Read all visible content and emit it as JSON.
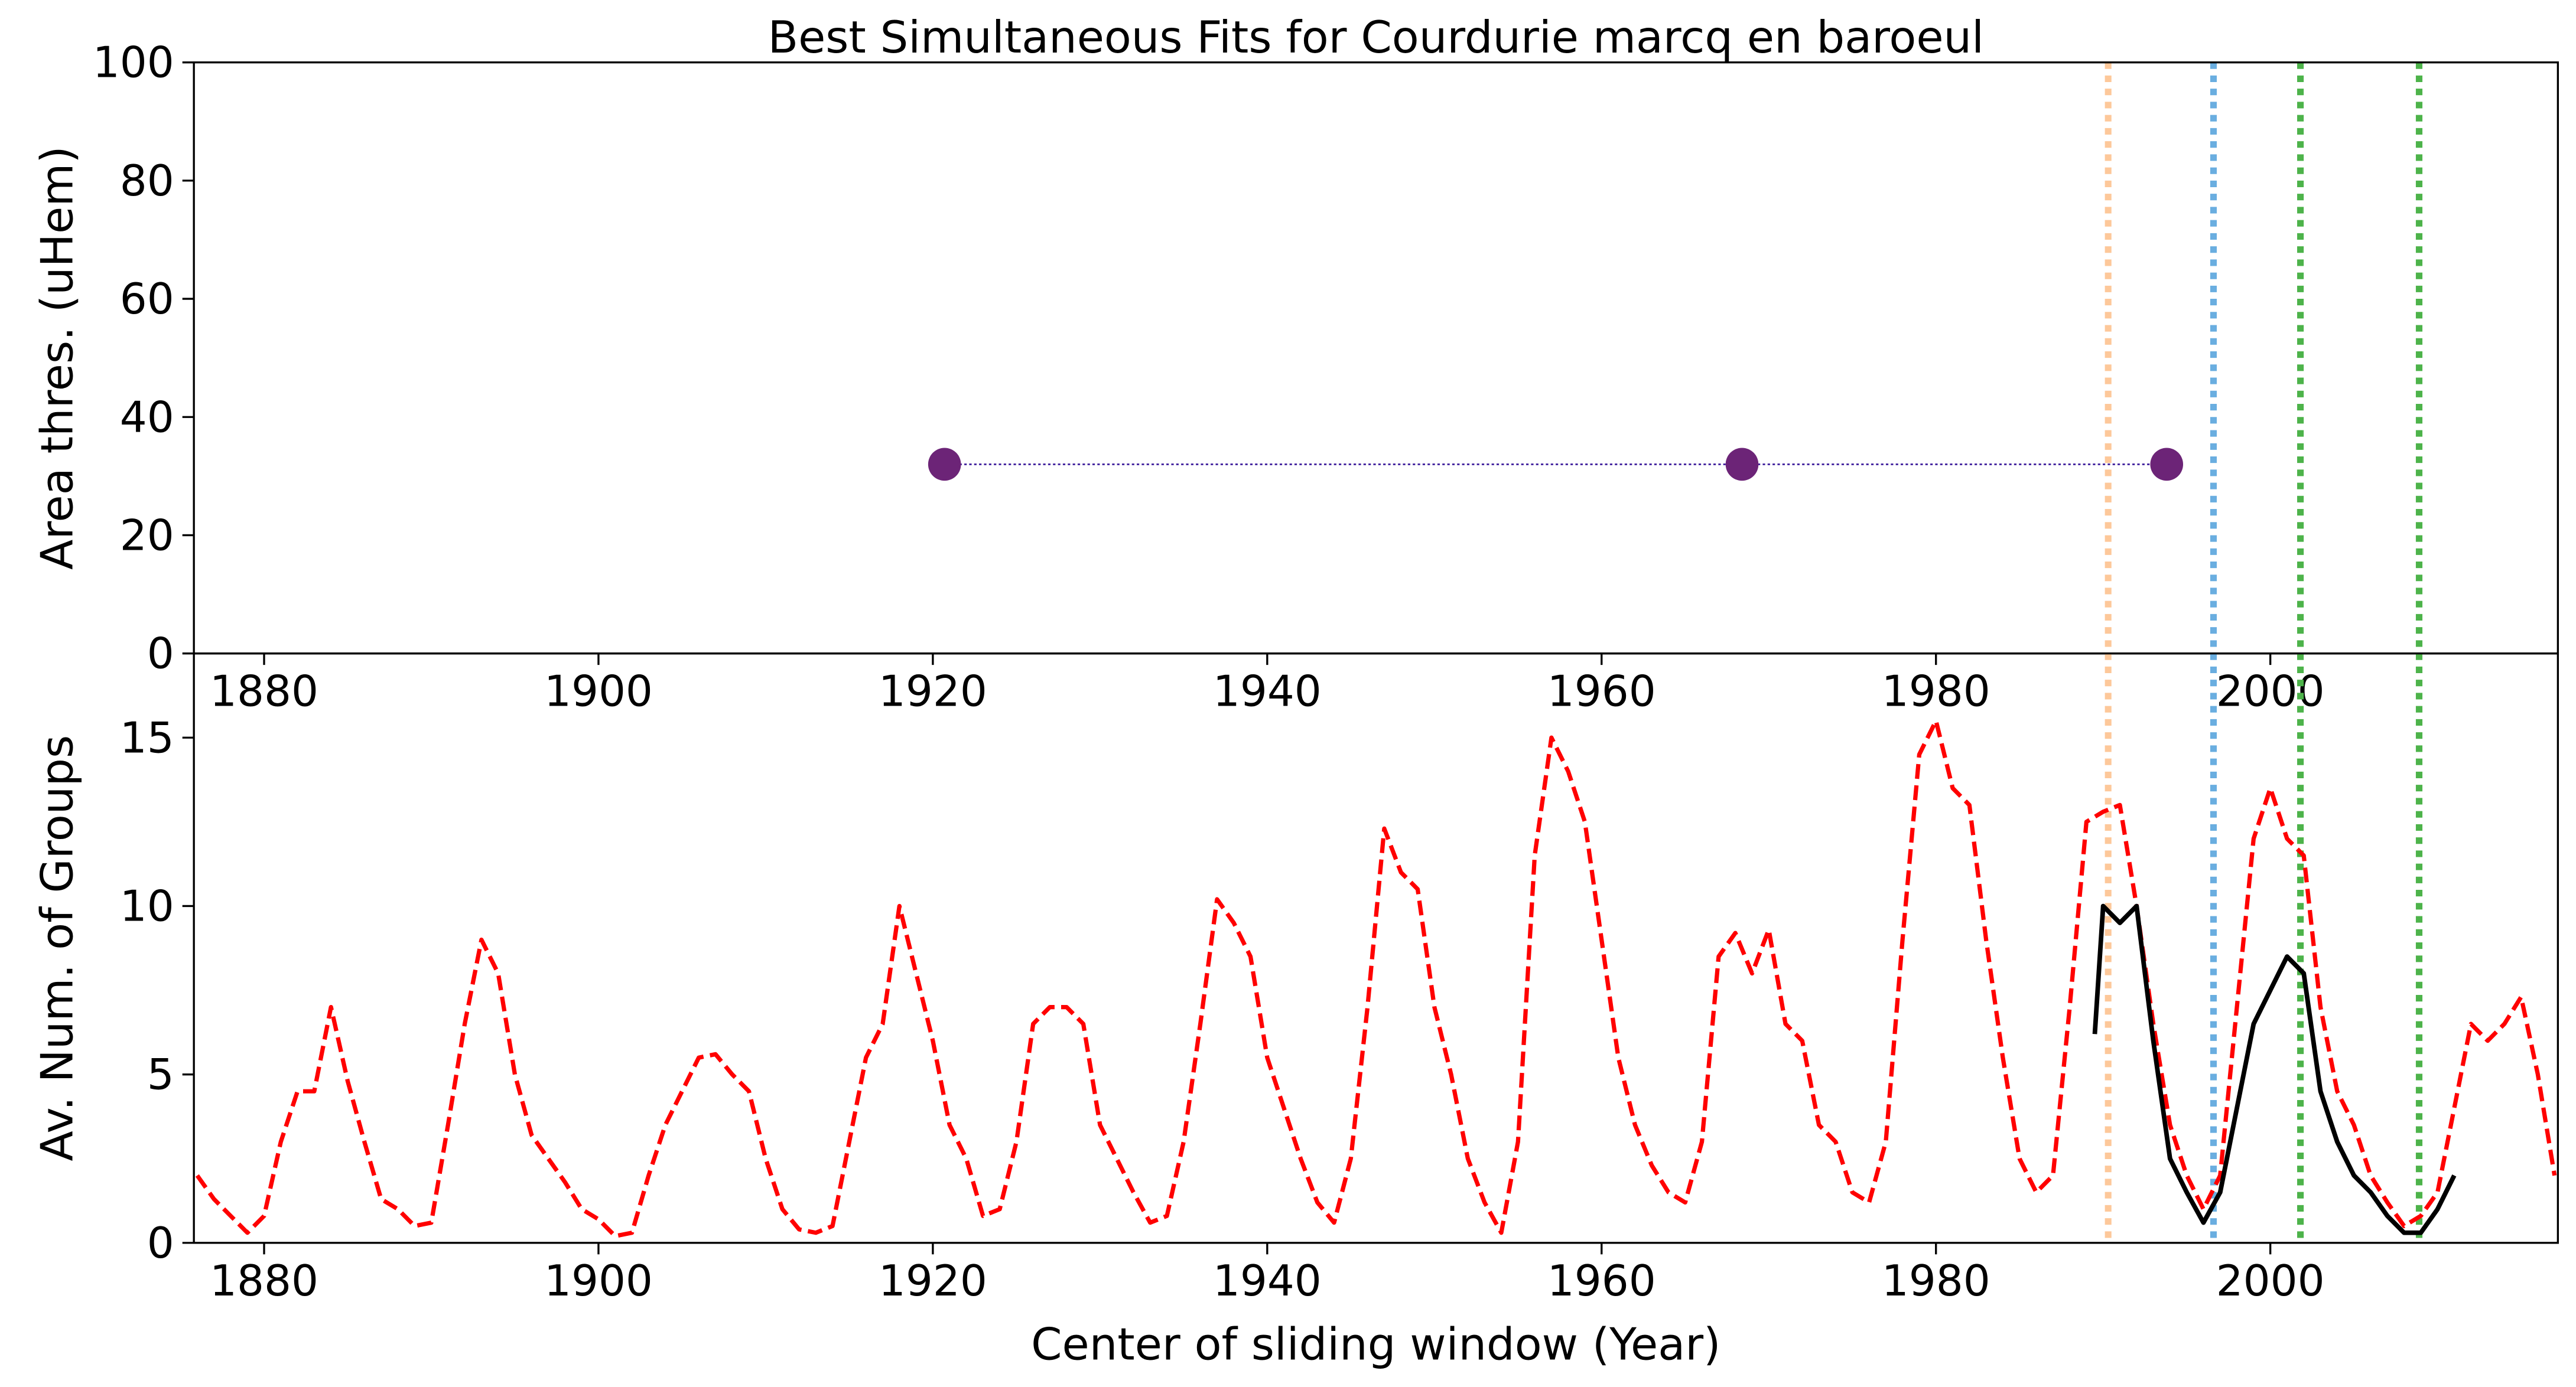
{
  "chart_data": [
    {
      "type": "scatter",
      "title": "Best Simultaneous Fits for Courdurie marcq en baroeul",
      "y_label": "Area thres. (uHem)",
      "x": [
        1920.7,
        1968.4,
        1993.8
      ],
      "values": [
        32,
        32,
        32
      ],
      "color": "#6c2477",
      "line_color": "#3b1a9a",
      "xlim": [
        1875.8,
        2017.2
      ],
      "xticks": [
        1880,
        1900,
        1920,
        1940,
        1960,
        1980,
        2000
      ],
      "ylim": [
        0,
        100
      ],
      "yticks": [
        0,
        20,
        40,
        60,
        80,
        100
      ],
      "vlines": [
        {
          "x": 1990.3,
          "color": "#fdc89a"
        },
        {
          "x": 1996.6,
          "color": "#6aaee0"
        },
        {
          "x": 2001.8,
          "color": "#4db34a"
        },
        {
          "x": 2008.9,
          "color": "#4db34a"
        }
      ]
    },
    {
      "type": "line",
      "y_label": "Av. Num. of Groups",
      "x_label": "Center of sliding window (Year)",
      "series": [
        {
          "color": "#ff0000",
          "style": "dashed",
          "x": [
            1876,
            1877,
            1878,
            1879,
            1880,
            1881,
            1882,
            1883,
            1884,
            1885,
            1886,
            1887,
            1888,
            1889,
            1890,
            1891,
            1892,
            1893,
            1894,
            1895,
            1896,
            1897,
            1898,
            1899,
            1900,
            1901,
            1902,
            1903,
            1904,
            1905,
            1906,
            1907,
            1908,
            1909,
            1910,
            1911,
            1912,
            1913,
            1914,
            1915,
            1916,
            1917,
            1918,
            1919,
            1920,
            1921,
            1922,
            1923,
            1924,
            1925,
            1926,
            1927,
            1928,
            1929,
            1930,
            1931,
            1932,
            1933,
            1934,
            1935,
            1936,
            1937,
            1938,
            1939,
            1940,
            1941,
            1942,
            1943,
            1944,
            1945,
            1946,
            1947,
            1948,
            1949,
            1950,
            1951,
            1952,
            1953,
            1954,
            1955,
            1956,
            1957,
            1958,
            1959,
            1960,
            1961,
            1962,
            1963,
            1964,
            1965,
            1966,
            1967,
            1968,
            1969,
            1970,
            1971,
            1972,
            1973,
            1974,
            1975,
            1976,
            1977,
            1978,
            1979,
            1980,
            1981,
            1982,
            1983,
            1984,
            1985,
            1986,
            1987,
            1988,
            1989,
            1990,
            1991,
            1992,
            1993,
            1994,
            1995,
            1996,
            1997,
            1998,
            1999,
            2000,
            2001,
            2002,
            2003,
            2004,
            2005,
            2006,
            2007,
            2008,
            2009,
            2010,
            2011,
            2012,
            2013,
            2014,
            2015,
            2016,
            2017
          ],
          "values": [
            2.0,
            1.3,
            0.8,
            0.3,
            0.8,
            3.0,
            4.5,
            4.5,
            7.0,
            4.8,
            3.0,
            1.3,
            1.0,
            0.5,
            0.6,
            3.5,
            6.5,
            9.0,
            8.0,
            5.0,
            3.2,
            2.5,
            1.8,
            1.0,
            0.7,
            0.2,
            0.3,
            2.0,
            3.5,
            4.5,
            5.5,
            5.6,
            5.0,
            4.5,
            2.5,
            1.0,
            0.4,
            0.3,
            0.5,
            3.0,
            5.5,
            6.5,
            10.0,
            8.0,
            6.0,
            3.5,
            2.5,
            0.8,
            1.0,
            3.0,
            6.5,
            7.0,
            7.0,
            6.5,
            3.5,
            2.5,
            1.5,
            0.6,
            0.8,
            3.0,
            6.5,
            10.2,
            9.5,
            8.5,
            5.5,
            4.0,
            2.5,
            1.2,
            0.6,
            2.5,
            7.0,
            12.3,
            11.0,
            10.5,
            7.0,
            5.0,
            2.5,
            1.2,
            0.3,
            3.0,
            11.5,
            15.0,
            14.0,
            12.5,
            9.0,
            5.5,
            3.5,
            2.3,
            1.5,
            1.2,
            3.0,
            8.5,
            9.2,
            8.0,
            9.3,
            6.5,
            6.0,
            3.5,
            3.0,
            1.5,
            1.2,
            3.0,
            9.0,
            14.5,
            15.5,
            13.5,
            13.0,
            9.0,
            5.5,
            2.5,
            1.5,
            2.0,
            7.0,
            12.5,
            12.8,
            13.0,
            10.0,
            6.5,
            3.5,
            2.0,
            1.0,
            2.0,
            7.0,
            12.0,
            13.5,
            12.0,
            11.5,
            7.0,
            4.5,
            3.5,
            2.0,
            1.2,
            0.5,
            0.8,
            1.5,
            4.0,
            6.5,
            6.0,
            6.5,
            7.3,
            5.0,
            2.0
          ]
        },
        {
          "color": "#000000",
          "style": "solid",
          "x": [
            1989.5,
            1990,
            1991,
            1992,
            1993,
            1994,
            1995,
            1996,
            1997,
            1998,
            1999,
            2000,
            2001,
            2002,
            2003,
            2004,
            2005,
            2006,
            2007,
            2008,
            2009,
            2010,
            2011
          ],
          "values": [
            6.2,
            10.0,
            9.5,
            10.0,
            6.0,
            2.5,
            1.5,
            0.6,
            1.5,
            4.0,
            6.5,
            7.5,
            8.5,
            8.0,
            4.5,
            3.0,
            2.0,
            1.5,
            0.8,
            0.3,
            0.3,
            1.0,
            2.0
          ]
        }
      ],
      "xlim": [
        1875.8,
        2017.2
      ],
      "xticks": [
        1880,
        1900,
        1920,
        1940,
        1960,
        1980,
        2000
      ],
      "ylim": [
        0,
        17.5
      ],
      "yticks": [
        0,
        5,
        10,
        15
      ],
      "vlines": [
        {
          "x": 1990.3,
          "color": "#fdc89a"
        },
        {
          "x": 1996.6,
          "color": "#6aaee0"
        },
        {
          "x": 2001.8,
          "color": "#4db34a"
        },
        {
          "x": 2008.9,
          "color": "#4db34a"
        }
      ]
    }
  ]
}
